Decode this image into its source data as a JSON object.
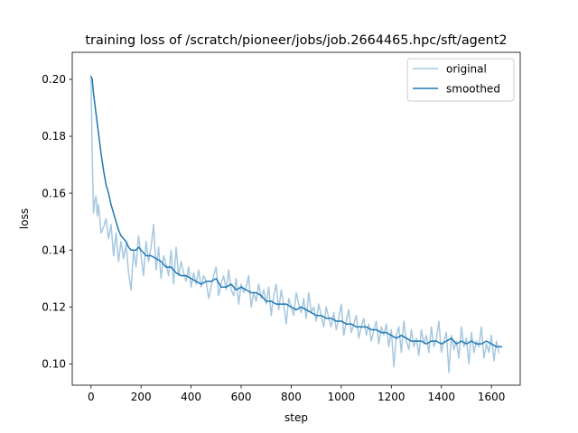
{
  "chart_data": {
    "type": "line",
    "title": "training loss of /scratch/pioneer/jobs/job.2664465.hpc/sft/agent2",
    "xlabel": "step",
    "ylabel": "loss",
    "xlim": [
      -75,
      1715
    ],
    "ylim": [
      0.0925,
      0.2095
    ],
    "x_ticks": [
      0,
      200,
      400,
      600,
      800,
      1000,
      1200,
      1400,
      1600
    ],
    "y_ticks": [
      0.1,
      0.12,
      0.14,
      0.16,
      0.18,
      0.2
    ],
    "x_tick_labels": [
      "0",
      "200",
      "400",
      "600",
      "800",
      "1000",
      "1200",
      "1400",
      "1600"
    ],
    "y_tick_labels": [
      "0.10",
      "0.12",
      "0.14",
      "0.16",
      "0.18",
      "0.20"
    ],
    "grid": false,
    "legend_position": "top-right",
    "series": [
      {
        "name": "original",
        "color": "#a6c8e0",
        "x": [
          0,
          5,
          10,
          15,
          20,
          25,
          30,
          40,
          50,
          60,
          70,
          80,
          90,
          100,
          110,
          120,
          130,
          140,
          150,
          160,
          170,
          180,
          190,
          200,
          210,
          220,
          230,
          240,
          250,
          260,
          270,
          280,
          290,
          300,
          310,
          320,
          330,
          340,
          350,
          360,
          370,
          380,
          390,
          400,
          410,
          420,
          430,
          440,
          450,
          460,
          470,
          480,
          490,
          500,
          510,
          520,
          530,
          540,
          550,
          560,
          570,
          580,
          590,
          600,
          610,
          620,
          630,
          640,
          650,
          660,
          670,
          680,
          690,
          700,
          710,
          720,
          730,
          740,
          750,
          760,
          770,
          780,
          790,
          800,
          810,
          820,
          830,
          840,
          850,
          860,
          870,
          880,
          890,
          900,
          910,
          920,
          930,
          940,
          950,
          960,
          970,
          980,
          990,
          1000,
          1010,
          1020,
          1030,
          1040,
          1050,
          1060,
          1070,
          1080,
          1090,
          1100,
          1110,
          1120,
          1130,
          1140,
          1150,
          1160,
          1170,
          1180,
          1190,
          1200,
          1210,
          1220,
          1230,
          1240,
          1250,
          1260,
          1270,
          1280,
          1290,
          1300,
          1310,
          1320,
          1330,
          1340,
          1350,
          1360,
          1370,
          1380,
          1390,
          1400,
          1410,
          1420,
          1430,
          1440,
          1450,
          1460,
          1470,
          1480,
          1490,
          1500,
          1510,
          1520,
          1530,
          1540,
          1550,
          1560,
          1570,
          1580,
          1590,
          1600,
          1610,
          1620,
          1630
        ],
        "y": [
          0.2,
          0.172,
          0.153,
          0.157,
          0.159,
          0.152,
          0.156,
          0.146,
          0.148,
          0.151,
          0.144,
          0.149,
          0.138,
          0.146,
          0.136,
          0.143,
          0.137,
          0.142,
          0.132,
          0.126,
          0.14,
          0.134,
          0.145,
          0.138,
          0.131,
          0.143,
          0.136,
          0.141,
          0.149,
          0.133,
          0.141,
          0.13,
          0.138,
          0.135,
          0.131,
          0.14,
          0.128,
          0.141,
          0.131,
          0.136,
          0.132,
          0.129,
          0.134,
          0.127,
          0.132,
          0.128,
          0.133,
          0.127,
          0.131,
          0.129,
          0.123,
          0.127,
          0.131,
          0.134,
          0.124,
          0.128,
          0.131,
          0.126,
          0.133,
          0.126,
          0.124,
          0.13,
          0.121,
          0.128,
          0.125,
          0.127,
          0.131,
          0.12,
          0.125,
          0.122,
          0.128,
          0.123,
          0.126,
          0.121,
          0.127,
          0.117,
          0.124,
          0.128,
          0.119,
          0.126,
          0.121,
          0.114,
          0.123,
          0.12,
          0.117,
          0.125,
          0.121,
          0.118,
          0.123,
          0.116,
          0.125,
          0.118,
          0.12,
          0.115,
          0.121,
          0.117,
          0.113,
          0.12,
          0.116,
          0.113,
          0.118,
          0.112,
          0.116,
          0.121,
          0.11,
          0.115,
          0.119,
          0.111,
          0.114,
          0.117,
          0.109,
          0.113,
          0.116,
          0.11,
          0.114,
          0.108,
          0.112,
          0.115,
          0.107,
          0.113,
          0.11,
          0.114,
          0.106,
          0.112,
          0.099,
          0.11,
          0.113,
          0.104,
          0.115,
          0.108,
          0.105,
          0.112,
          0.106,
          0.109,
          0.103,
          0.112,
          0.107,
          0.11,
          0.104,
          0.113,
          0.106,
          0.109,
          0.115,
          0.104,
          0.108,
          0.111,
          0.097,
          0.11,
          0.105,
          0.108,
          0.102,
          0.113,
          0.106,
          0.109,
          0.1,
          0.111,
          0.104,
          0.108,
          0.106,
          0.113,
          0.102,
          0.107,
          0.104,
          0.11,
          0.101,
          0.108,
          0.104
        ],
        "width": 1.5
      },
      {
        "name": "smoothed",
        "color": "#1f77b4",
        "x": [
          0,
          5,
          10,
          20,
          30,
          40,
          50,
          60,
          70,
          80,
          90,
          100,
          110,
          120,
          130,
          140,
          150,
          160,
          170,
          180,
          190,
          200,
          220,
          240,
          260,
          280,
          300,
          320,
          340,
          360,
          380,
          400,
          420,
          440,
          460,
          480,
          500,
          520,
          540,
          560,
          580,
          600,
          620,
          640,
          660,
          680,
          700,
          720,
          740,
          760,
          780,
          800,
          820,
          840,
          860,
          880,
          900,
          920,
          940,
          960,
          980,
          1000,
          1020,
          1040,
          1060,
          1080,
          1100,
          1120,
          1140,
          1160,
          1180,
          1200,
          1220,
          1240,
          1260,
          1280,
          1300,
          1320,
          1340,
          1360,
          1380,
          1400,
          1420,
          1440,
          1460,
          1480,
          1500,
          1520,
          1540,
          1560,
          1580,
          1600,
          1620,
          1640
        ],
        "y": [
          0.201,
          0.2,
          0.195,
          0.188,
          0.181,
          0.174,
          0.168,
          0.163,
          0.16,
          0.156,
          0.153,
          0.15,
          0.147,
          0.145,
          0.144,
          0.143,
          0.141,
          0.14,
          0.14,
          0.14,
          0.141,
          0.14,
          0.138,
          0.138,
          0.137,
          0.136,
          0.134,
          0.134,
          0.132,
          0.131,
          0.131,
          0.13,
          0.129,
          0.128,
          0.129,
          0.129,
          0.13,
          0.127,
          0.127,
          0.128,
          0.126,
          0.127,
          0.126,
          0.125,
          0.125,
          0.124,
          0.122,
          0.122,
          0.121,
          0.121,
          0.121,
          0.12,
          0.119,
          0.12,
          0.119,
          0.118,
          0.117,
          0.117,
          0.116,
          0.116,
          0.115,
          0.115,
          0.114,
          0.114,
          0.113,
          0.113,
          0.113,
          0.112,
          0.112,
          0.111,
          0.111,
          0.11,
          0.109,
          0.11,
          0.109,
          0.108,
          0.108,
          0.108,
          0.107,
          0.108,
          0.108,
          0.107,
          0.108,
          0.109,
          0.107,
          0.108,
          0.107,
          0.108,
          0.107,
          0.107,
          0.108,
          0.107,
          0.106,
          0.106
        ],
        "width": 1.5
      }
    ]
  }
}
